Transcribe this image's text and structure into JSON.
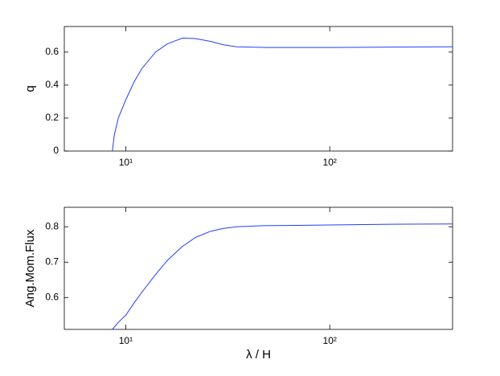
{
  "chart_data": [
    {
      "type": "line",
      "ylabel": "q",
      "log_x": true,
      "x": [
        8.6,
        8.8,
        9.2,
        10,
        11,
        12,
        14,
        16,
        19,
        22,
        26,
        30,
        35,
        50,
        100,
        200,
        400
      ],
      "series": [
        {
          "name": "q",
          "color": "#1f3fff",
          "values": [
            0,
            0.1,
            0.2,
            0.31,
            0.42,
            0.5,
            0.6,
            0.65,
            0.685,
            0.682,
            0.665,
            0.645,
            0.632,
            0.628,
            0.628,
            0.63,
            0.632
          ]
        }
      ],
      "xlim": [
        5,
        400
      ],
      "ylim": [
        0,
        0.755
      ],
      "xticks": [
        {
          "value": 10,
          "label": "10¹"
        },
        {
          "value": 100,
          "label": "10²"
        }
      ],
      "yticks": [
        0,
        0.2,
        0.4,
        0.6
      ]
    },
    {
      "type": "line",
      "ylabel": "Ang.Mom.Flux",
      "xlabel": "λ / H",
      "log_x": true,
      "x": [
        8.6,
        9.2,
        10,
        11,
        12,
        14,
        16,
        19,
        22,
        26,
        30,
        35,
        47,
        100,
        200,
        400
      ],
      "series": [
        {
          "name": "Ang.Mom.Flux",
          "color": "#1f3fff",
          "values": [
            0.51,
            0.53,
            0.55,
            0.585,
            0.615,
            0.665,
            0.705,
            0.745,
            0.77,
            0.787,
            0.795,
            0.8,
            0.803,
            0.805,
            0.807,
            0.808
          ]
        }
      ],
      "xlim": [
        5,
        400
      ],
      "ylim": [
        0.51,
        0.855
      ],
      "xticks": [
        {
          "value": 10,
          "label": "10¹"
        },
        {
          "value": 100,
          "label": "10²"
        }
      ],
      "yticks": [
        0.6,
        0.7,
        0.8
      ]
    }
  ]
}
